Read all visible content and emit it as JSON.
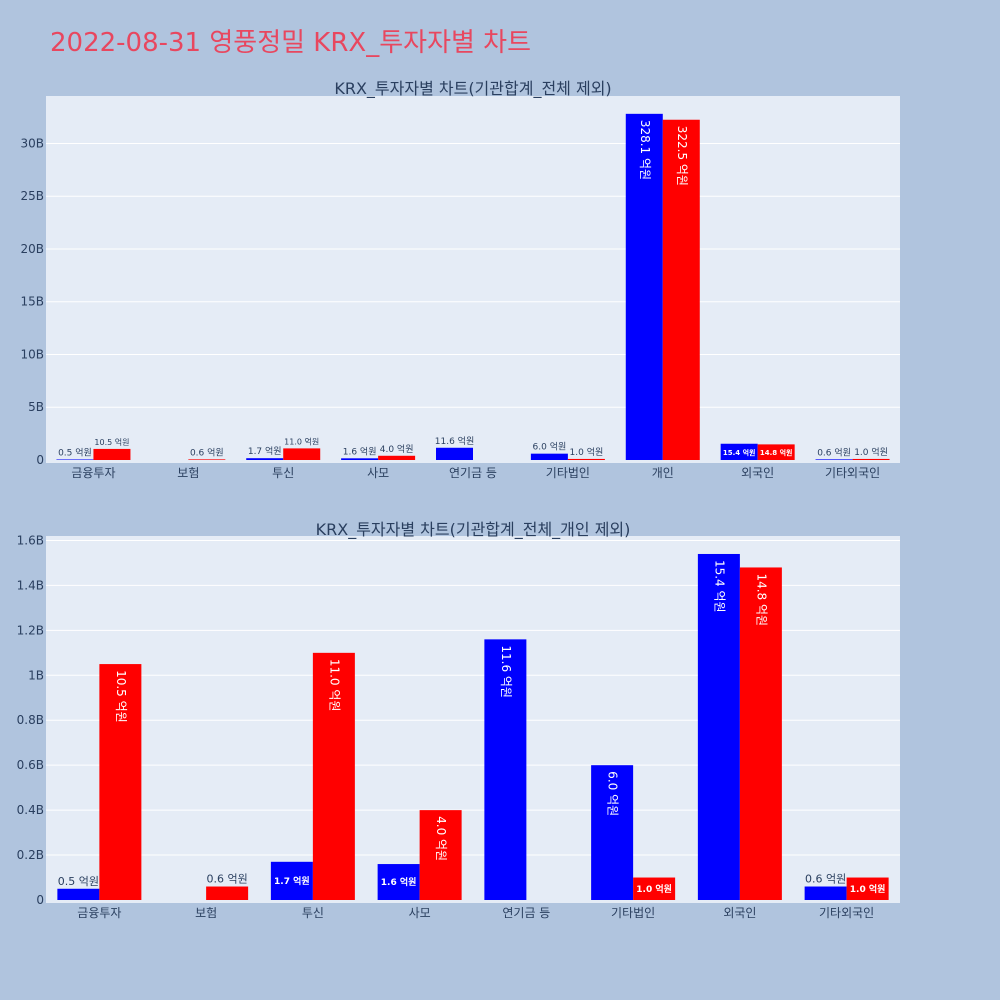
{
  "page_title": "2022-08-31 영풍정밀 KRX_투자자별 차트",
  "colors": {
    "background": "#b0c4de",
    "plot_bg": "#e5ecf6",
    "title": "#e8475f",
    "buy": "#0000ff",
    "sell": "#ff0000",
    "text": "#2a3f5f"
  },
  "chart_data": [
    {
      "type": "bar",
      "title": "KRX_투자자별 차트(기관합계_전체 제외)",
      "categories": [
        "금융투자",
        "보험",
        "투신",
        "사모",
        "연기금 등",
        "기타법인",
        "개인",
        "외국인",
        "기타외국인"
      ],
      "ylim": [
        0,
        34500000000
      ],
      "yticks": [
        0,
        5000000000,
        10000000000,
        15000000000,
        20000000000,
        25000000000,
        30000000000
      ],
      "ytick_labels": [
        "0",
        "5B",
        "10B",
        "15B",
        "20B",
        "25B",
        "30B"
      ],
      "grid": true,
      "series": [
        {
          "values": [
            50000000,
            null,
            170000000,
            160000000,
            1160000000,
            600000000,
            32810000000,
            1540000000,
            60000000
          ],
          "labels": [
            "0.5 억원",
            "",
            "1.7 억원",
            "1.6 억원",
            "11.6 억원",
            "6.0 억원",
            "328.1 억원",
            "15.4 억원",
            "0.6 억원"
          ]
        },
        {
          "values": [
            1050000000,
            60000000,
            1100000000,
            400000000,
            null,
            100000000,
            32250000000,
            1480000000,
            100000000
          ],
          "labels": [
            "10.5 억원",
            "0.6 억원",
            "11.0 억원",
            "4.0 억원",
            "",
            "1.0 억원",
            "322.5 억원",
            "14.8 억원",
            "1.0 억원"
          ]
        }
      ]
    },
    {
      "type": "bar",
      "title": "KRX_투자자별 차트(기관합계_전체_개인 제외)",
      "categories": [
        "금융투자",
        "보험",
        "투신",
        "사모",
        "연기금 등",
        "기타법인",
        "외국인",
        "기타외국인"
      ],
      "ylim": [
        0,
        1620000000
      ],
      "yticks": [
        0,
        200000000,
        400000000,
        600000000,
        800000000,
        1000000000,
        1200000000,
        1400000000,
        1600000000
      ],
      "ytick_labels": [
        "0",
        "0.2B",
        "0.4B",
        "0.6B",
        "0.8B",
        "1B",
        "1.2B",
        "1.4B",
        "1.6B"
      ],
      "grid": true,
      "series": [
        {
          "values": [
            50000000,
            null,
            170000000,
            160000000,
            1160000000,
            600000000,
            1540000000,
            60000000
          ],
          "labels": [
            "0.5 억원",
            "",
            "1.7 억원",
            "1.6 억원",
            "11.6 억원",
            "6.0 억원",
            "15.4 억원",
            "0.6 억원"
          ]
        },
        {
          "values": [
            1050000000,
            60000000,
            1100000000,
            400000000,
            null,
            100000000,
            1480000000,
            100000000
          ],
          "labels": [
            "10.5 억원",
            "0.6 억원",
            "11.0 억원",
            "4.0 억원",
            "",
            "1.0 억원",
            "14.8 억원",
            "1.0 억원"
          ]
        }
      ]
    }
  ]
}
